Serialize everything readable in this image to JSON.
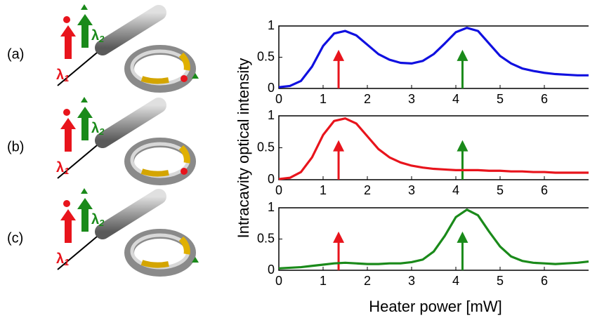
{
  "figure": {
    "xlabel": "Heater power [mW]",
    "ylabel": "Intracavity optical intensity",
    "panels": [
      "(a)",
      "(b)",
      "(c)"
    ],
    "lambda": "λ",
    "sub1": "1",
    "sub2": "2"
  },
  "chart_data": [
    {
      "type": "line",
      "x": [
        0,
        0.25,
        0.5,
        0.75,
        1,
        1.25,
        1.5,
        1.75,
        2,
        2.25,
        2.5,
        2.75,
        3,
        3.25,
        3.5,
        3.75,
        4,
        4.25,
        4.5,
        4.75,
        5,
        5.25,
        5.5,
        5.75,
        6,
        6.25,
        6.5,
        6.75,
        7
      ],
      "series": [
        {
          "color": "#1010e0",
          "values": [
            0.02,
            0.04,
            0.12,
            0.35,
            0.68,
            0.88,
            0.92,
            0.85,
            0.7,
            0.55,
            0.46,
            0.41,
            0.4,
            0.44,
            0.55,
            0.72,
            0.9,
            0.97,
            0.92,
            0.72,
            0.52,
            0.4,
            0.32,
            0.28,
            0.25,
            0.23,
            0.22,
            0.21,
            0.21
          ]
        }
      ],
      "markers": [
        {
          "x": 1.35,
          "color": "#e8141c"
        },
        {
          "x": 4.15,
          "color": "#1a8a1a"
        }
      ],
      "xlim": [
        0,
        7
      ],
      "xticks": [
        0,
        1,
        2,
        3,
        4,
        5,
        6
      ],
      "ylim": [
        0,
        1
      ],
      "yticks": [
        0,
        0.5,
        1
      ]
    },
    {
      "type": "line",
      "x": [
        0,
        0.25,
        0.5,
        0.75,
        1,
        1.25,
        1.5,
        1.75,
        2,
        2.25,
        2.5,
        2.75,
        3,
        3.25,
        3.5,
        3.75,
        4,
        4.25,
        4.5,
        4.75,
        5,
        5.25,
        5.5,
        5.75,
        6,
        6.25,
        6.5,
        6.75,
        7
      ],
      "series": [
        {
          "color": "#e8141c",
          "values": [
            0.01,
            0.03,
            0.12,
            0.35,
            0.7,
            0.92,
            0.96,
            0.88,
            0.68,
            0.48,
            0.35,
            0.27,
            0.22,
            0.19,
            0.17,
            0.16,
            0.15,
            0.15,
            0.15,
            0.14,
            0.14,
            0.13,
            0.13,
            0.12,
            0.12,
            0.11,
            0.11,
            0.11,
            0.11
          ]
        }
      ],
      "markers": [
        {
          "x": 1.35,
          "color": "#e8141c"
        },
        {
          "x": 4.15,
          "color": "#1a8a1a"
        }
      ],
      "xlim": [
        0,
        7
      ],
      "xticks": [
        0,
        1,
        2,
        3,
        4,
        5,
        6
      ],
      "ylim": [
        0,
        1
      ],
      "yticks": [
        0,
        0.5,
        1
      ]
    },
    {
      "type": "line",
      "x": [
        0,
        0.25,
        0.5,
        0.75,
        1,
        1.25,
        1.5,
        1.75,
        2,
        2.25,
        2.5,
        2.75,
        3,
        3.25,
        3.5,
        3.75,
        4,
        4.25,
        4.5,
        4.75,
        5,
        5.25,
        5.5,
        5.75,
        6,
        6.25,
        6.5,
        6.75,
        7
      ],
      "series": [
        {
          "color": "#1a8a1a",
          "values": [
            0.03,
            0.04,
            0.05,
            0.07,
            0.09,
            0.11,
            0.12,
            0.11,
            0.1,
            0.1,
            0.11,
            0.11,
            0.13,
            0.17,
            0.3,
            0.55,
            0.85,
            0.97,
            0.88,
            0.62,
            0.38,
            0.22,
            0.15,
            0.12,
            0.11,
            0.1,
            0.11,
            0.12,
            0.14
          ]
        }
      ],
      "markers": [
        {
          "x": 1.35,
          "color": "#e8141c"
        },
        {
          "x": 4.15,
          "color": "#1a8a1a"
        }
      ],
      "xlim": [
        0,
        7
      ],
      "xticks": [
        0,
        1,
        2,
        3,
        4,
        5,
        6
      ],
      "ylim": [
        0,
        1
      ],
      "yticks": [
        0,
        0.5,
        1
      ]
    }
  ]
}
